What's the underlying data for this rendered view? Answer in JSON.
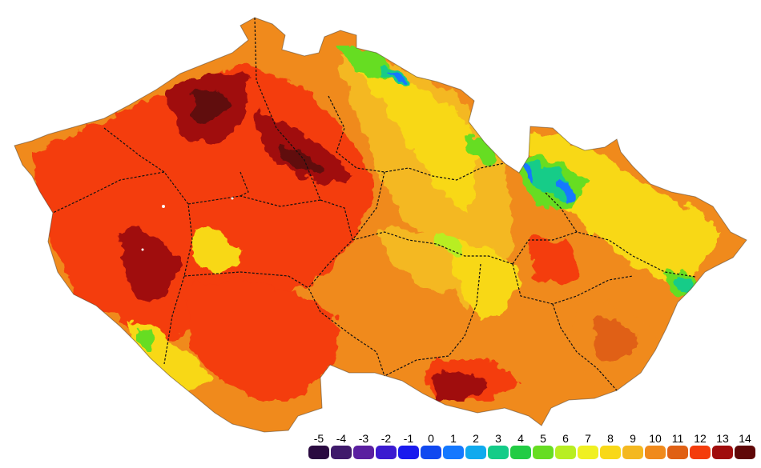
{
  "legend": {
    "items": [
      {
        "label": "-5",
        "color": "#2a0a40"
      },
      {
        "label": "-4",
        "color": "#3f1a6b"
      },
      {
        "label": "-3",
        "color": "#5a1fa0"
      },
      {
        "label": "-2",
        "color": "#3b1ad0"
      },
      {
        "label": "-1",
        "color": "#1a1aee"
      },
      {
        "label": "0",
        "color": "#1048f0"
      },
      {
        "label": "1",
        "color": "#1478ff"
      },
      {
        "label": "2",
        "color": "#10aaee"
      },
      {
        "label": "3",
        "color": "#14cc88"
      },
      {
        "label": "4",
        "color": "#22cc44"
      },
      {
        "label": "5",
        "color": "#66dd22"
      },
      {
        "label": "6",
        "color": "#b8ee22"
      },
      {
        "label": "7",
        "color": "#f0f022"
      },
      {
        "label": "8",
        "color": "#f8d818"
      },
      {
        "label": "9",
        "color": "#f4b820"
      },
      {
        "label": "10",
        "color": "#f08a1c"
      },
      {
        "label": "11",
        "color": "#e06014"
      },
      {
        "label": "12",
        "color": "#f43c0c"
      },
      {
        "label": "13",
        "color": "#a00c0c"
      },
      {
        "label": "14",
        "color": "#600808"
      }
    ]
  }
}
